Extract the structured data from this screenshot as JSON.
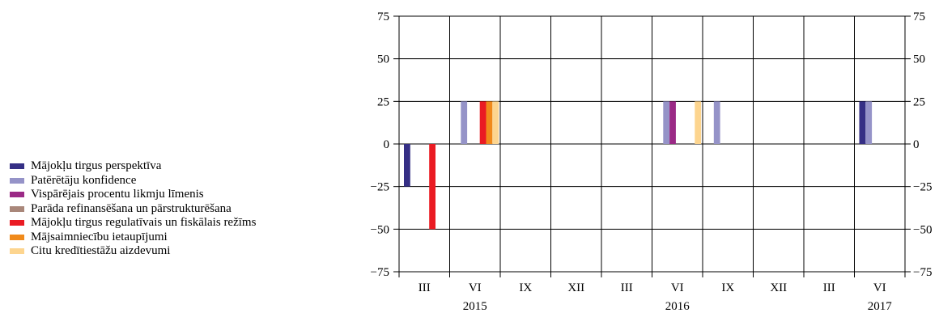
{
  "chart_data": {
    "type": "bar",
    "categories": [
      "III",
      "VI",
      "IX",
      "XII",
      "III",
      "VI",
      "IX",
      "XII",
      "III",
      "VI"
    ],
    "year_labels": [
      {
        "label": "2015",
        "category_index": 1
      },
      {
        "label": "2016",
        "category_index": 5
      },
      {
        "label": "2017",
        "category_index": 9
      }
    ],
    "ylim": [
      -75,
      75
    ],
    "yticks": [
      "75",
      "50",
      "25",
      "0",
      "−25",
      "−50",
      "−75"
    ],
    "ytick_values": [
      75,
      50,
      25,
      0,
      -25,
      -50,
      -75
    ],
    "grid": true,
    "legend_position": "left",
    "series": [
      {
        "name": "Mājokļu tirgus perspektīva",
        "color": "#352f85",
        "values": [
          -25,
          0,
          0,
          0,
          0,
          0,
          0,
          0,
          0,
          25
        ]
      },
      {
        "name": "Patērētāju konfidence",
        "color": "#9593c8",
        "values": [
          0,
          25,
          0,
          0,
          0,
          25,
          25,
          0,
          0,
          25
        ]
      },
      {
        "name": "Vispārējais procentu likmju līmenis",
        "color": "#9b2a86",
        "values": [
          0,
          0,
          0,
          0,
          0,
          25,
          0,
          0,
          0,
          0
        ]
      },
      {
        "name": "Parāda refinansēšana un pārstrukturēšana",
        "color": "#a9877a",
        "values": [
          0,
          0,
          0,
          0,
          0,
          0,
          0,
          0,
          0,
          0
        ]
      },
      {
        "name": "Mājokļu tirgus regulatīvais un fiskālais režīms",
        "color": "#ea1b23",
        "values": [
          -50,
          25,
          0,
          0,
          0,
          0,
          0,
          0,
          0,
          0
        ]
      },
      {
        "name": "Mājsaimniecību ietaupījumi",
        "color": "#f08a1b",
        "values": [
          0,
          25,
          0,
          0,
          0,
          0,
          0,
          0,
          0,
          0
        ]
      },
      {
        "name": "Citu kredītiestāžu aizdevumi",
        "color": "#fdd58f",
        "values": [
          0,
          25,
          0,
          0,
          0,
          25,
          0,
          0,
          0,
          0
        ]
      }
    ]
  }
}
